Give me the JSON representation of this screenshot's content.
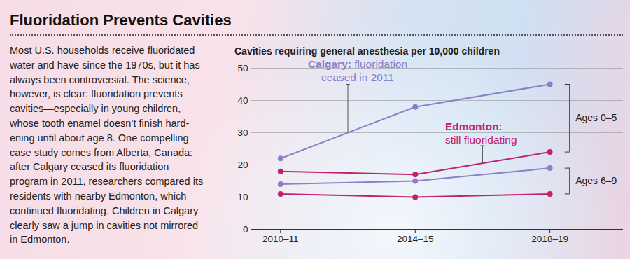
{
  "chart_data": {
    "type": "line",
    "title": "Fluoridation Prevents Cavities",
    "text": [
      "Most U.S. households receive fluoridated",
      "water and have since the 1970s, but it has",
      "always been controversial. The science,",
      "however, is clear: fluoridation prevents",
      "cavities—especially in young children,",
      "whose tooth enamel doesn’t finish hard-",
      "ening until about age 8. One compelling",
      "case study comes from Alberta, Canada:",
      "after Calgary ceased its fluoridation",
      "program in 2011, researchers compared its",
      "residents with nearby Edmonton, which",
      "continued fluoridating. Children in Calgary",
      "clearly saw a jump in cavities not mirrored",
      "in Edmonton."
    ],
    "subtitle": "Cavities requiring general anesthesia per 10,000 children",
    "categories": [
      "2010–11",
      "2014–15",
      "2018–19"
    ],
    "series": [
      {
        "name": "Calgary",
        "group": "Ages 0–5",
        "color": "#8a7fcb",
        "values": [
          22,
          38,
          45
        ]
      },
      {
        "name": "Edmonton",
        "group": "Ages 0–5",
        "color": "#c3206f",
        "values": [
          18,
          17,
          24
        ]
      },
      {
        "name": "Calgary",
        "group": "Ages 6–9",
        "color": "#8a7fcb",
        "values": [
          14,
          15,
          19
        ]
      },
      {
        "name": "Edmonton",
        "group": "Ages 6–9",
        "color": "#c3206f",
        "values": [
          11,
          10,
          11
        ]
      }
    ],
    "ylim": [
      0,
      50
    ],
    "yticks": [
      0,
      10,
      20,
      30,
      40,
      50
    ],
    "grid": true,
    "marker": "circle",
    "annotations": [
      {
        "series": "Calgary",
        "group": "Ages 0–5",
        "at": [
          "2010–11",
          "2014–15"
        ],
        "title": "Calgary:",
        "text": "fluoridation ceased in 2011"
      },
      {
        "series": "Edmonton",
        "group": "Ages 0–5",
        "at": [
          "2014–15",
          "2018–19"
        ],
        "title": "Edmonton:",
        "text": "still fluoridating"
      }
    ]
  }
}
